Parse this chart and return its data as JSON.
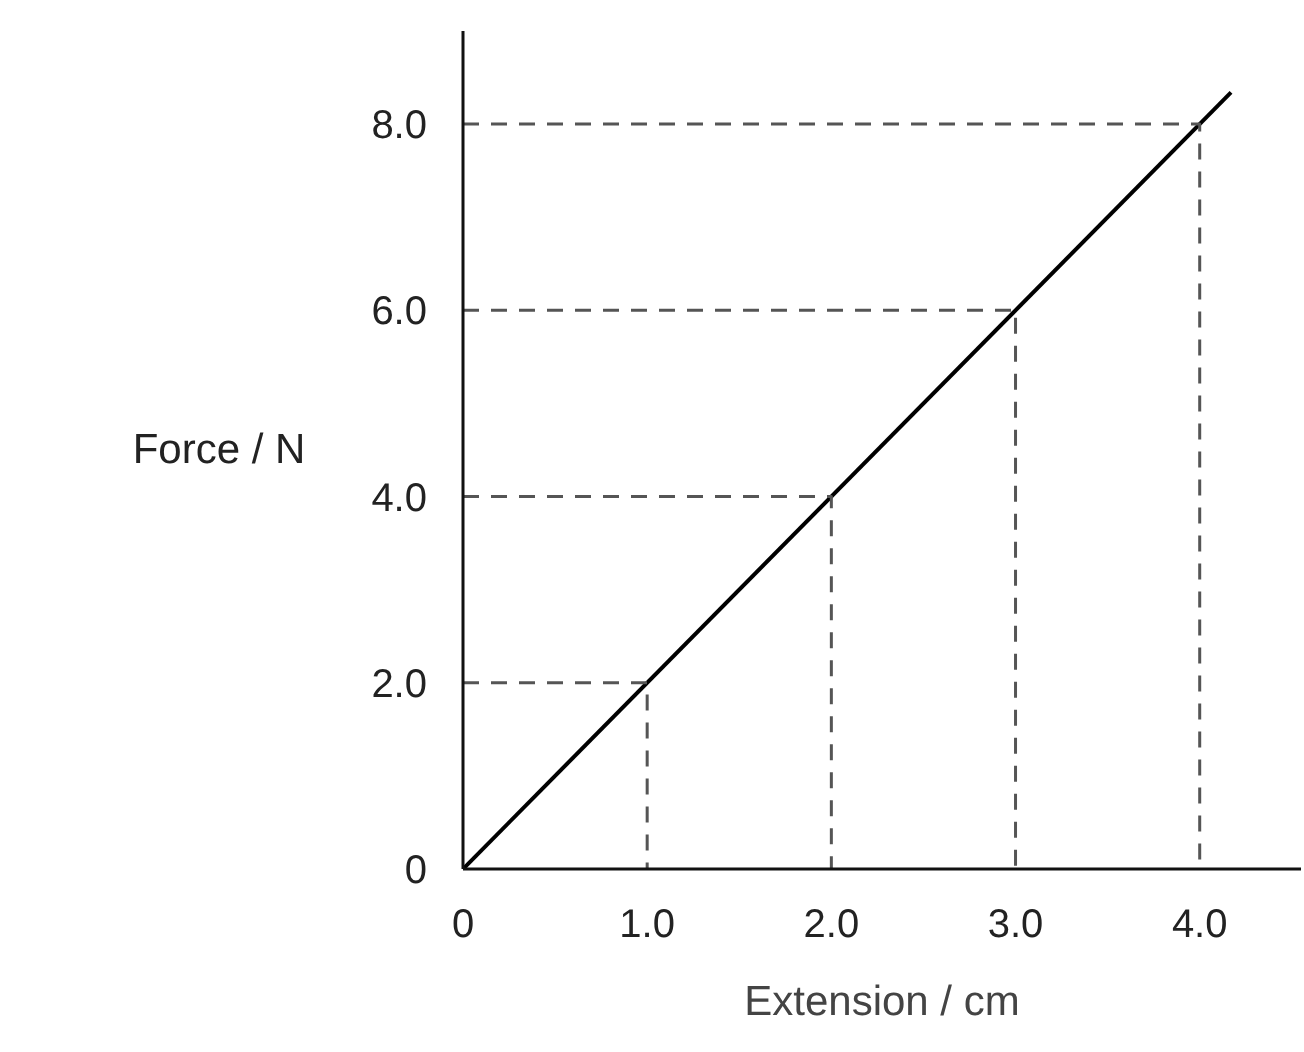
{
  "chart_data": {
    "type": "line",
    "xlabel": "Extension / cm",
    "ylabel": "Force / N",
    "xlim": [
      0,
      4.55
    ],
    "ylim": [
      0,
      9.0
    ],
    "xticks": [
      0,
      {
        "value": 1,
        "label": "1.0"
      },
      {
        "value": 2,
        "label": "2.0"
      },
      {
        "value": 3,
        "label": "3.0"
      },
      {
        "value": 4,
        "label": "4.0"
      }
    ],
    "yticks": [
      0,
      {
        "value": 2,
        "label": "2.0"
      },
      {
        "value": 4,
        "label": "4.0"
      },
      {
        "value": 6,
        "label": "6.0"
      },
      {
        "value": 8,
        "label": "8.0"
      }
    ],
    "grid": false,
    "marker": "none",
    "series": [
      {
        "color": "#000000",
        "line_style": "solid",
        "x": [
          0,
          4.17
        ],
        "values": [
          0,
          8.34
        ]
      },
      {
        "color": "#555555",
        "line_style": "dashed",
        "x": [
          0,
          1,
          1
        ],
        "values": [
          2,
          2,
          0
        ]
      },
      {
        "color": "#555555",
        "line_style": "dashed",
        "x": [
          0,
          2,
          2
        ],
        "values": [
          4,
          4,
          0
        ]
      },
      {
        "color": "#555555",
        "line_style": "dashed",
        "x": [
          0,
          3,
          3
        ],
        "values": [
          6,
          6,
          0
        ]
      },
      {
        "color": "#555555",
        "line_style": "dashed",
        "x": [
          0,
          4,
          4
        ],
        "values": [
          8,
          8,
          0
        ]
      }
    ]
  }
}
